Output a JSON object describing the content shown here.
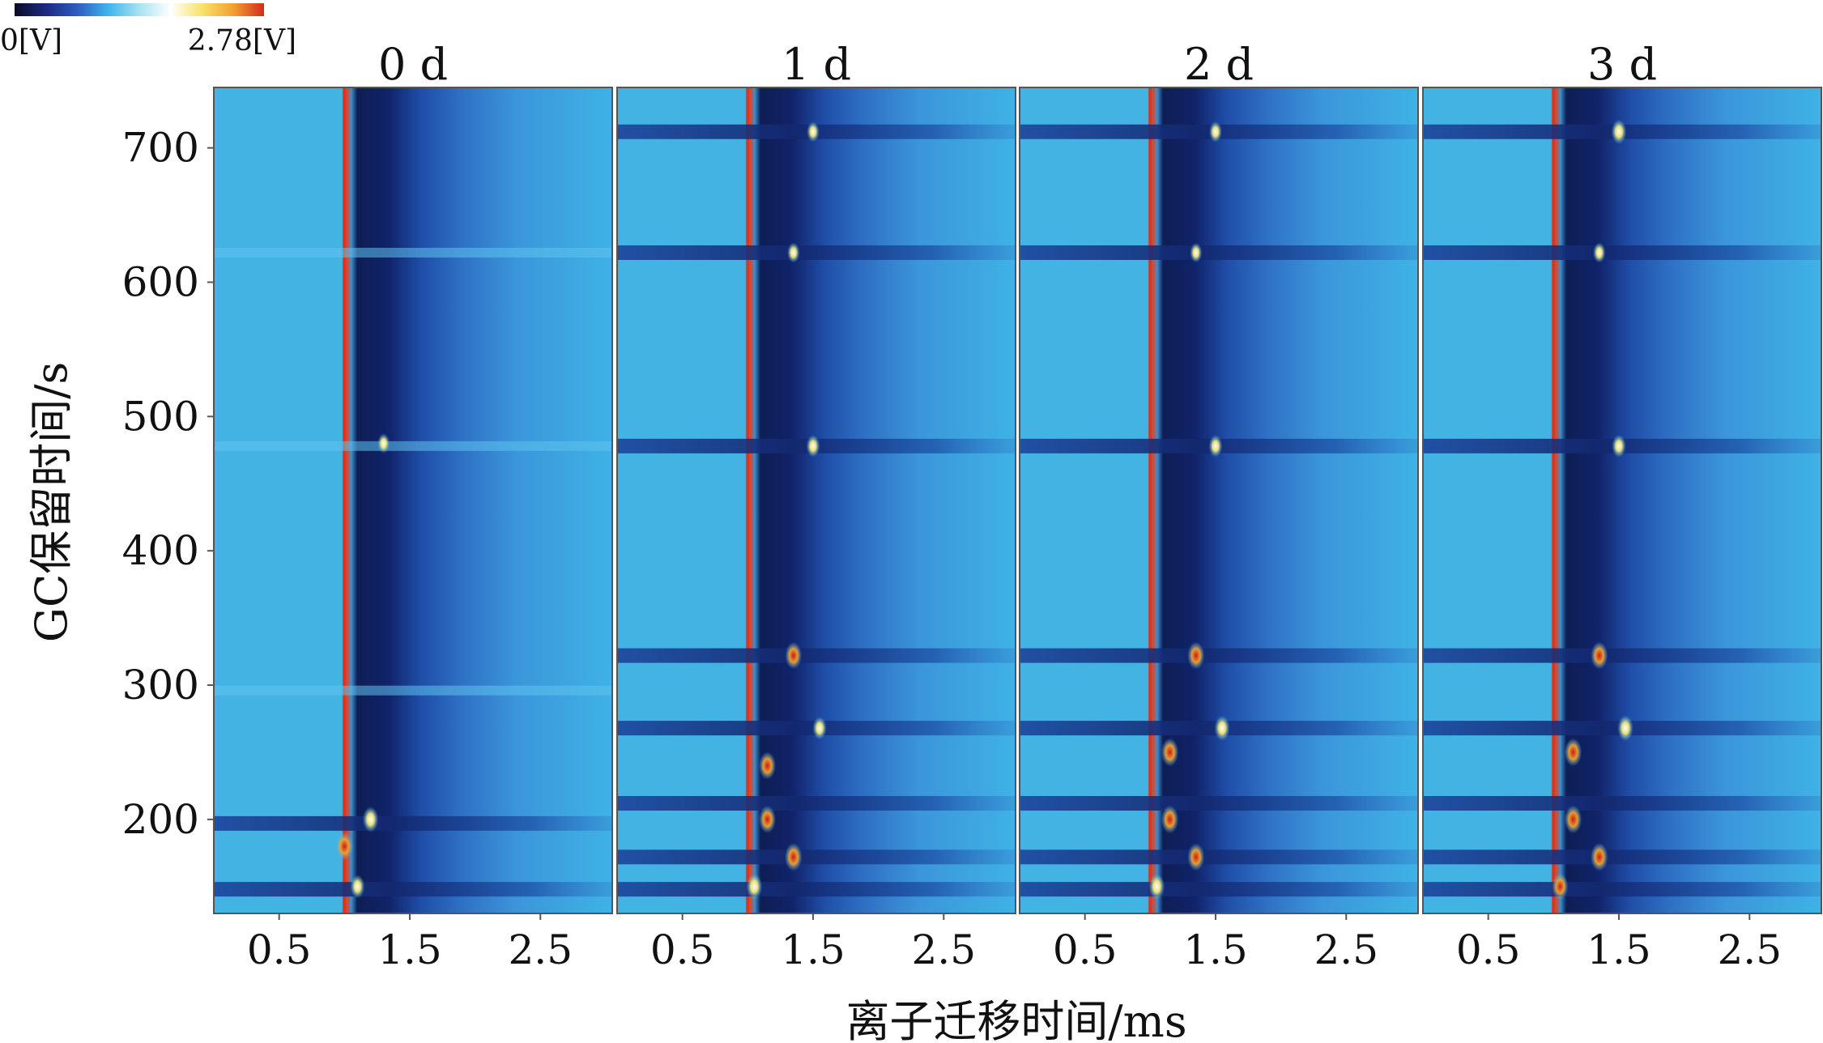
{
  "colorbar": {
    "min_label": "0[V]",
    "max_label": "2.78[V]",
    "colors": [
      "#0b0b25",
      "#1c2a80",
      "#2e5cc0",
      "#3fb4ea",
      "#a7e3f0",
      "#ffffff",
      "#f7e36b",
      "#f2a232",
      "#d42b1a"
    ]
  },
  "chart_data": {
    "type": "heatmap",
    "xlabel": "离子迁移时间/ms",
    "ylabel": "GC保留时间/s",
    "x_ticks": [
      "0.5",
      "1.5",
      "2.5"
    ],
    "x_tick_values": [
      0.5,
      1.5,
      2.5
    ],
    "y_ticks": [
      "200",
      "300",
      "400",
      "500",
      "600",
      "700"
    ],
    "y_tick_values": [
      200,
      300,
      400,
      500,
      600,
      700
    ],
    "xlim": [
      0.0,
      3.05
    ],
    "ylim": [
      130,
      745
    ],
    "value_range": [
      0,
      2.78
    ],
    "value_unit": "V",
    "panels": [
      {
        "title": "0 d",
        "rip_drift_ms": 1.0,
        "dark_bands_s": [
          148,
          197
        ],
        "light_bands_s": [
          296,
          478,
          622
        ],
        "spots": [
          {
            "drift_ms": 1.0,
            "gc_s": 180,
            "intensity": 2.6
          },
          {
            "drift_ms": 1.2,
            "gc_s": 200,
            "intensity": 2.2
          },
          {
            "drift_ms": 1.1,
            "gc_s": 150,
            "intensity": 1.8
          },
          {
            "drift_ms": 1.3,
            "gc_s": 480,
            "intensity": 1.2
          }
        ]
      },
      {
        "title": "1 d",
        "rip_drift_ms": 1.0,
        "dark_bands_s": [
          148,
          172,
          212,
          268,
          322,
          478,
          622,
          712
        ],
        "light_bands_s": [],
        "spots": [
          {
            "drift_ms": 1.5,
            "gc_s": 478,
            "intensity": 1.6
          },
          {
            "drift_ms": 1.35,
            "gc_s": 322,
            "intensity": 2.4
          },
          {
            "drift_ms": 1.55,
            "gc_s": 268,
            "intensity": 1.7
          },
          {
            "drift_ms": 1.15,
            "gc_s": 240,
            "intensity": 2.5
          },
          {
            "drift_ms": 1.15,
            "gc_s": 200,
            "intensity": 2.5
          },
          {
            "drift_ms": 1.35,
            "gc_s": 172,
            "intensity": 2.6
          },
          {
            "drift_ms": 1.05,
            "gc_s": 150,
            "intensity": 2.2
          },
          {
            "drift_ms": 1.5,
            "gc_s": 712,
            "intensity": 1.3
          },
          {
            "drift_ms": 1.35,
            "gc_s": 622,
            "intensity": 1.3
          }
        ]
      },
      {
        "title": "2 d",
        "rip_drift_ms": 1.0,
        "dark_bands_s": [
          148,
          172,
          212,
          268,
          322,
          478,
          622,
          712
        ],
        "light_bands_s": [],
        "spots": [
          {
            "drift_ms": 1.5,
            "gc_s": 478,
            "intensity": 1.6
          },
          {
            "drift_ms": 1.35,
            "gc_s": 322,
            "intensity": 2.5
          },
          {
            "drift_ms": 1.55,
            "gc_s": 268,
            "intensity": 2.1
          },
          {
            "drift_ms": 1.15,
            "gc_s": 250,
            "intensity": 2.6
          },
          {
            "drift_ms": 1.15,
            "gc_s": 200,
            "intensity": 2.6
          },
          {
            "drift_ms": 1.35,
            "gc_s": 172,
            "intensity": 2.5
          },
          {
            "drift_ms": 1.05,
            "gc_s": 150,
            "intensity": 2.2
          },
          {
            "drift_ms": 1.5,
            "gc_s": 712,
            "intensity": 1.4
          },
          {
            "drift_ms": 1.35,
            "gc_s": 622,
            "intensity": 1.2
          }
        ]
      },
      {
        "title": "3 d",
        "rip_drift_ms": 1.0,
        "dark_bands_s": [
          148,
          172,
          212,
          268,
          322,
          478,
          622,
          712
        ],
        "light_bands_s": [],
        "spots": [
          {
            "drift_ms": 1.5,
            "gc_s": 478,
            "intensity": 1.7
          },
          {
            "drift_ms": 1.35,
            "gc_s": 322,
            "intensity": 2.5
          },
          {
            "drift_ms": 1.55,
            "gc_s": 268,
            "intensity": 2.2
          },
          {
            "drift_ms": 1.15,
            "gc_s": 250,
            "intensity": 2.6
          },
          {
            "drift_ms": 1.15,
            "gc_s": 200,
            "intensity": 2.6
          },
          {
            "drift_ms": 1.35,
            "gc_s": 172,
            "intensity": 2.6
          },
          {
            "drift_ms": 1.05,
            "gc_s": 150,
            "intensity": 2.3
          },
          {
            "drift_ms": 1.5,
            "gc_s": 712,
            "intensity": 2.0
          },
          {
            "drift_ms": 1.35,
            "gc_s": 622,
            "intensity": 1.3
          }
        ]
      }
    ]
  }
}
